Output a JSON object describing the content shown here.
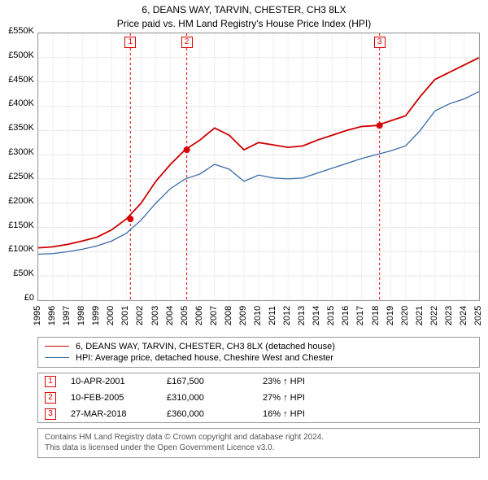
{
  "title": "6, DEANS WAY, TARVIN, CHESTER, CH3 8LX",
  "subtitle": "Price paid vs. HM Land Registry's House Price Index (HPI)",
  "chart": {
    "type": "line",
    "background_color": "#ffffff",
    "grid_color": "#e8e8e8",
    "y": {
      "min": 0,
      "max": 550000,
      "step": 50000,
      "labels": [
        "£0",
        "£50K",
        "£100K",
        "£150K",
        "£200K",
        "£250K",
        "£300K",
        "£350K",
        "£400K",
        "£450K",
        "£500K",
        "£550K"
      ]
    },
    "x": {
      "min": 1995,
      "max": 2025,
      "step": 1,
      "labels": [
        "1995",
        "1996",
        "1997",
        "1998",
        "1999",
        "2000",
        "2001",
        "2002",
        "2003",
        "2004",
        "2005",
        "2006",
        "2007",
        "2008",
        "2009",
        "2010",
        "2011",
        "2012",
        "2013",
        "2014",
        "2015",
        "2016",
        "2017",
        "2018",
        "2019",
        "2020",
        "2021",
        "2022",
        "2023",
        "2024",
        "2025"
      ]
    },
    "series": [
      {
        "name": "6, DEANS WAY, TARVIN, CHESTER, CH3 8LX (detached house)",
        "color": "#cc0000",
        "width": 1.8,
        "data": [
          [
            1995,
            108000
          ],
          [
            1996,
            110000
          ],
          [
            1997,
            115000
          ],
          [
            1998,
            122000
          ],
          [
            1999,
            130000
          ],
          [
            2000,
            145000
          ],
          [
            2001,
            167500
          ],
          [
            2002,
            200000
          ],
          [
            2003,
            245000
          ],
          [
            2004,
            280000
          ],
          [
            2005,
            310000
          ],
          [
            2006,
            330000
          ],
          [
            2007,
            355000
          ],
          [
            2008,
            340000
          ],
          [
            2009,
            310000
          ],
          [
            2010,
            325000
          ],
          [
            2011,
            320000
          ],
          [
            2012,
            315000
          ],
          [
            2013,
            318000
          ],
          [
            2014,
            330000
          ],
          [
            2015,
            340000
          ],
          [
            2016,
            350000
          ],
          [
            2017,
            358000
          ],
          [
            2018,
            360000
          ],
          [
            2019,
            370000
          ],
          [
            2020,
            380000
          ],
          [
            2021,
            420000
          ],
          [
            2022,
            455000
          ],
          [
            2023,
            470000
          ],
          [
            2024,
            485000
          ],
          [
            2025,
            500000
          ]
        ]
      },
      {
        "name": "HPI: Average price, detached house, Cheshire West and Chester",
        "color": "#3a6aa8",
        "width": 1.3,
        "data": [
          [
            1995,
            95000
          ],
          [
            1996,
            96000
          ],
          [
            1997,
            100000
          ],
          [
            1998,
            105000
          ],
          [
            1999,
            112000
          ],
          [
            2000,
            122000
          ],
          [
            2001,
            138000
          ],
          [
            2002,
            165000
          ],
          [
            2003,
            200000
          ],
          [
            2004,
            230000
          ],
          [
            2005,
            250000
          ],
          [
            2006,
            260000
          ],
          [
            2007,
            280000
          ],
          [
            2008,
            270000
          ],
          [
            2009,
            245000
          ],
          [
            2010,
            258000
          ],
          [
            2011,
            252000
          ],
          [
            2012,
            250000
          ],
          [
            2013,
            252000
          ],
          [
            2014,
            262000
          ],
          [
            2015,
            272000
          ],
          [
            2016,
            282000
          ],
          [
            2017,
            292000
          ],
          [
            2018,
            300000
          ],
          [
            2019,
            308000
          ],
          [
            2020,
            318000
          ],
          [
            2021,
            350000
          ],
          [
            2022,
            390000
          ],
          [
            2023,
            405000
          ],
          [
            2024,
            415000
          ],
          [
            2025,
            430000
          ]
        ]
      }
    ],
    "events": [
      {
        "num": "1",
        "year": 2001.27,
        "price": 167500,
        "date": "10-APR-2001",
        "price_label": "£167,500",
        "hpi_label": "23% ↑ HPI"
      },
      {
        "num": "2",
        "year": 2005.11,
        "price": 310000,
        "date": "10-FEB-2005",
        "price_label": "£310,000",
        "hpi_label": "27% ↑ HPI"
      },
      {
        "num": "3",
        "year": 2018.23,
        "price": 360000,
        "date": "27-MAR-2018",
        "price_label": "£360,000",
        "hpi_label": "16% ↑ HPI"
      }
    ],
    "event_dot_color": "#cc0000",
    "event_dot_radius": 4
  },
  "footer": {
    "line1": "Contains HM Land Registry data © Crown copyright and database right 2024.",
    "line2": "This data is licensed under the Open Government Licence v3.0."
  }
}
